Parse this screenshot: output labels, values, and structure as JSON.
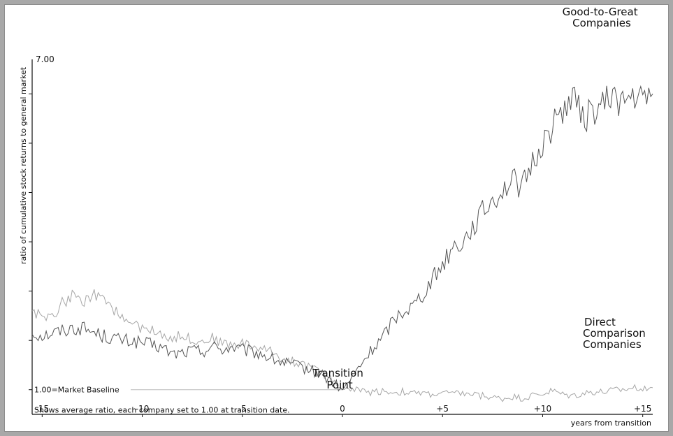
{
  "chart_data": {
    "type": "line",
    "title": "",
    "xlabel": "years from transition",
    "ylabel": "ratio of cumulative stock returns to general market",
    "xlim": [
      -15.5,
      15.5
    ],
    "ylim": [
      0.5,
      7.7
    ],
    "x_ticks": [
      -15,
      -10,
      -5,
      0,
      5,
      10,
      15
    ],
    "x_tick_labels": [
      "-15",
      "-10",
      "-5",
      "0",
      "+5",
      "+10",
      "+15"
    ],
    "y_ticks": [
      1,
      2,
      3,
      4,
      5,
      6,
      7
    ],
    "y_top_label": "7.00",
    "baseline_label": "1.00=Market Baseline",
    "note": "Shows average ratio, each company set to 1.00 at transition date.",
    "transition_label": [
      "Transition",
      "Point"
    ],
    "grid": false,
    "colors": {
      "good_to_great": "#555555",
      "comparison": "#a6a6a6",
      "baseline": "#bbbbbb",
      "axis": "#111111"
    },
    "series": [
      {
        "name": "Good-to-Great Companies",
        "name_lines": [
          "Good-to-Great",
          "Companies"
        ],
        "x": [
          -15.5,
          -15,
          -14.5,
          -14,
          -13.5,
          -13,
          -12.5,
          -12,
          -11.5,
          -11,
          -10.5,
          -10,
          -9.5,
          -9,
          -8.5,
          -8,
          -7.5,
          -7,
          -6.5,
          -6,
          -5.5,
          -5,
          -4.5,
          -4,
          -3.5,
          -3,
          -2.5,
          -2,
          -1.5,
          -1,
          -0.5,
          0,
          0.5,
          1,
          1.5,
          2,
          2.5,
          3,
          3.5,
          4,
          4.5,
          5,
          5.5,
          6,
          6.5,
          7,
          7.5,
          8,
          8.5,
          9,
          9.5,
          10,
          10.5,
          11,
          11.5,
          12,
          12.5,
          13,
          13.5,
          14,
          14.5,
          15,
          15.5
        ],
        "y": [
          2.15,
          2.1,
          2.15,
          2.2,
          2.25,
          2.25,
          2.18,
          2.1,
          2.05,
          2.0,
          1.98,
          1.95,
          1.9,
          1.85,
          1.72,
          1.75,
          1.8,
          1.78,
          1.88,
          1.82,
          1.86,
          1.8,
          1.76,
          1.72,
          1.62,
          1.55,
          1.5,
          1.45,
          1.38,
          1.3,
          1.15,
          1.0,
          1.25,
          1.55,
          1.82,
          2.05,
          2.4,
          2.6,
          2.7,
          2.95,
          3.25,
          3.55,
          3.9,
          4.0,
          4.3,
          4.6,
          4.85,
          5.05,
          5.25,
          5.1,
          5.6,
          6.0,
          6.35,
          6.7,
          6.95,
          6.5,
          6.65,
          6.75,
          7.0,
          6.8,
          6.95,
          6.85,
          7.0
        ]
      },
      {
        "name": "Direct Comparison Companies",
        "name_lines": [
          "Direct",
          "Comparison",
          "Companies"
        ],
        "x": [
          -15.5,
          -15,
          -14.5,
          -14,
          -13.5,
          -13,
          -12.5,
          -12,
          -11.5,
          -11,
          -10.5,
          -10,
          -9.5,
          -9,
          -8.5,
          -8,
          -7.5,
          -7,
          -6.5,
          -6,
          -5.5,
          -5,
          -4.5,
          -4,
          -3.5,
          -3,
          -2.5,
          -2,
          -1.5,
          -1,
          -0.5,
          0,
          0.5,
          1,
          1.5,
          2,
          2.5,
          3,
          3.5,
          4,
          4.5,
          5,
          5.5,
          6,
          6.5,
          7,
          7.5,
          8,
          8.5,
          9,
          9.5,
          10,
          10.5,
          11,
          11.5,
          12,
          12.5,
          13,
          13.5,
          14,
          14.5,
          15,
          15.5
        ],
        "y": [
          2.6,
          2.5,
          2.45,
          2.75,
          2.9,
          2.78,
          2.95,
          2.8,
          2.65,
          2.5,
          2.3,
          2.25,
          2.2,
          2.15,
          2.05,
          2.1,
          2.02,
          1.98,
          2.05,
          1.95,
          1.9,
          1.95,
          1.88,
          1.82,
          1.78,
          1.62,
          1.58,
          1.52,
          1.45,
          1.32,
          1.22,
          1.0,
          1.02,
          0.97,
          0.95,
          0.98,
          0.94,
          0.96,
          0.92,
          0.93,
          0.9,
          0.94,
          0.91,
          0.93,
          0.9,
          0.88,
          0.84,
          0.82,
          0.86,
          0.83,
          0.88,
          0.92,
          0.98,
          0.9,
          0.88,
          0.92,
          0.96,
          0.95,
          0.98,
          1.0,
          1.03,
          1.05,
          1.04
        ]
      }
    ]
  }
}
